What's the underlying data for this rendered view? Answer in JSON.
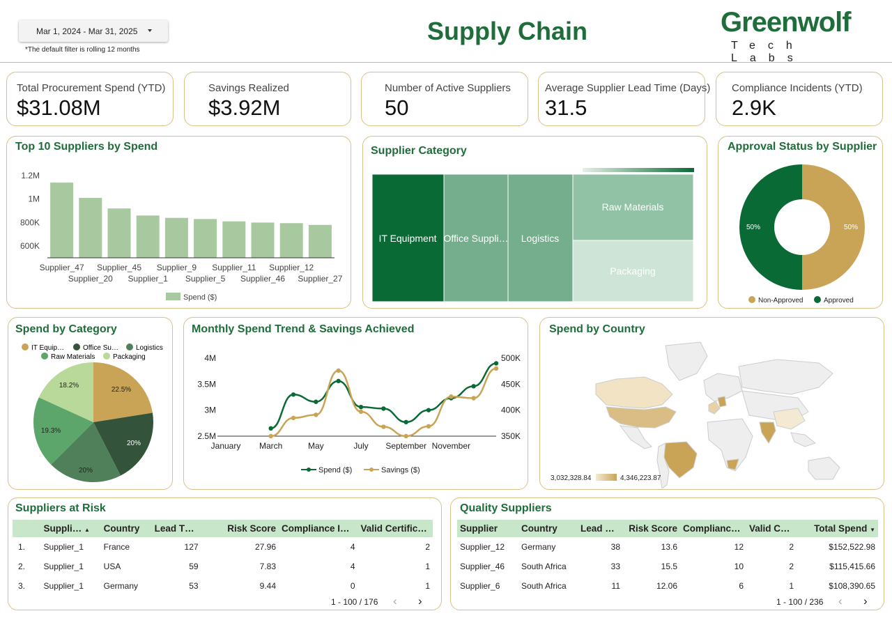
{
  "header": {
    "date_range": "Mar 1, 2024 - Mar 31, 2025",
    "note": "*The default filter is rolling 12 months",
    "title": "Supply Chain",
    "logo_top": "Greenwolf",
    "logo_sub": "Tech Labs"
  },
  "kpis": [
    {
      "label": "Total Procurement Spend (YTD)",
      "value": "$31.08M"
    },
    {
      "label": "Savings Realized",
      "value": "$3.92M"
    },
    {
      "label": "Number of Active Suppliers",
      "value": "50"
    },
    {
      "label": "Average Supplier Lead Time (Days)",
      "value": "31.5"
    },
    {
      "label": "Compliance Incidents (YTD)",
      "value": "2.9K"
    }
  ],
  "colors": {
    "accent_green": "#1f6d3a",
    "gold": "#c9a456",
    "border": "#d8c08a",
    "bar": "#a8c8a0",
    "header_row": "#c8e6c9"
  },
  "chart_data": [
    {
      "type": "bar",
      "title": "Top 10 Suppliers by Spend",
      "categories": [
        "Supplier_47",
        "Supplier_20",
        "Supplier_45",
        "Supplier_1",
        "Supplier_9",
        "Supplier_5",
        "Supplier_11",
        "Supplier_46",
        "Supplier_12",
        "Supplier_27"
      ],
      "series": [
        {
          "name": "Spend ($)",
          "values": [
            1140000,
            1010000,
            920000,
            860000,
            840000,
            830000,
            810000,
            800000,
            795000,
            780000
          ]
        }
      ],
      "y_ticks": [
        "1.2M",
        "1M",
        "800K",
        "600K"
      ],
      "ylim": [
        500000,
        1200000
      ],
      "legend": "bottom"
    },
    {
      "type": "treemap",
      "title": "Supplier Category",
      "categories": [
        "IT Equipment",
        "Office Suppli…",
        "Logistics",
        "Raw Materials",
        "Packaging"
      ]
    },
    {
      "type": "pie",
      "title": "Approval Status by Supplier",
      "categories": [
        "Non-Approved",
        "Approved"
      ],
      "values": [
        50,
        50
      ],
      "labels": [
        "50%",
        "50%"
      ],
      "legend": "bottom"
    },
    {
      "type": "pie",
      "title": "Spend by Category",
      "categories": [
        "IT Equip…",
        "Office Su…",
        "Logistics",
        "Raw Materials",
        "Packaging"
      ],
      "values": [
        22.5,
        20,
        20,
        19.3,
        18.2
      ],
      "labels": [
        "22.5%",
        "20%",
        "20%",
        "19.3%",
        "18.2%"
      ],
      "legend": "top"
    },
    {
      "type": "line",
      "title": "Monthly Spend Trend & Savings Achieved",
      "x_ticks": [
        "January",
        "March",
        "May",
        "July",
        "September",
        "November"
      ],
      "y_left_ticks": [
        "4M",
        "3.5M",
        "3M",
        "2.5M"
      ],
      "y_right_ticks": [
        "500K",
        "450K",
        "400K",
        "350K"
      ],
      "ylim_left": [
        2500000,
        4000000
      ],
      "ylim_right": [
        350000,
        500000
      ],
      "series": [
        {
          "name": "Spend ($)",
          "axis": "left",
          "x": [
            3,
            4,
            5,
            6,
            7,
            8,
            9,
            10,
            11,
            12,
            13
          ],
          "values": [
            2650000,
            3300000,
            3160000,
            3560000,
            3060000,
            3030000,
            2770000,
            3000000,
            3230000,
            3460000,
            3900000
          ]
        },
        {
          "name": "Savings ($)",
          "axis": "left",
          "x": [
            3,
            4,
            5,
            6,
            7,
            8,
            9,
            10,
            11,
            12,
            13
          ],
          "values": [
            2500000,
            2850000,
            2910000,
            3760000,
            2970000,
            2680000,
            2500000,
            2690000,
            3260000,
            3230000,
            3800000
          ]
        }
      ],
      "legend": "bottom"
    },
    {
      "type": "map",
      "title": "Spend by Country",
      "scale_min": "3,032,328.84",
      "scale_max": "4,346,223.87"
    }
  ],
  "risk_table": {
    "title": "Suppliers at Risk",
    "columns": [
      "Suppli…",
      "Country",
      "Lead T…",
      "Risk Score",
      "Compliance I…",
      "Valid Certific…"
    ],
    "rows": [
      [
        "1.",
        "Supplier_1",
        "France",
        "127",
        "27.96",
        "4",
        "2"
      ],
      [
        "2.",
        "Supplier_1",
        "USA",
        "59",
        "7.83",
        "4",
        "1"
      ],
      [
        "3.",
        "Supplier_1",
        "Germany",
        "53",
        "9.44",
        "0",
        "1"
      ]
    ],
    "pager": "1 - 100 / 176"
  },
  "quality_table": {
    "title": "Quality Suppliers",
    "columns": [
      "Supplier",
      "Country",
      "Lead …",
      "Risk Score",
      "Complianc…",
      "Valid C…",
      "Total Spend"
    ],
    "rows": [
      [
        "Supplier_12",
        "Germany",
        "38",
        "13.6",
        "12",
        "2",
        "$152,522.98"
      ],
      [
        "Supplier_46",
        "South Africa",
        "33",
        "15.5",
        "10",
        "2",
        "$115,415.66"
      ],
      [
        "Supplier_6",
        "South Africa",
        "11",
        "12.06",
        "6",
        "1",
        "$108,390.65"
      ]
    ],
    "pager": "1 - 100 / 236"
  }
}
